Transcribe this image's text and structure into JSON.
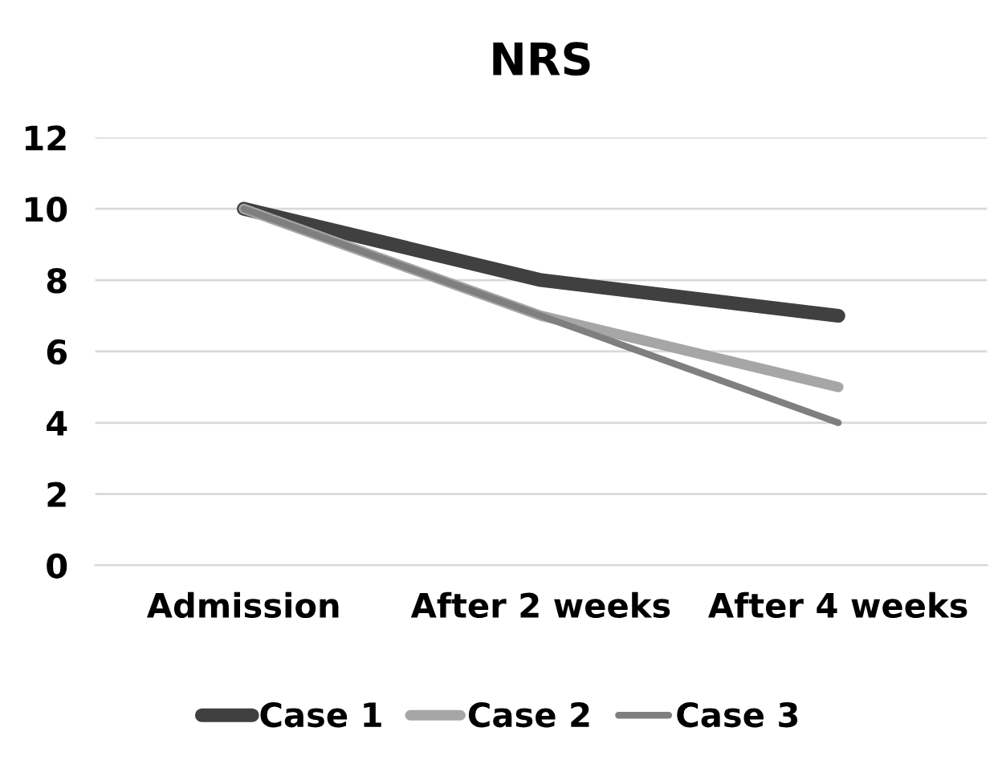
{
  "chart_data": {
    "type": "line",
    "title": "NRS",
    "categories": [
      "Admission",
      "After 2 weeks",
      "After 4 weeks"
    ],
    "series": [
      {
        "name": "Case 1",
        "color": "#404040",
        "values": [
          10,
          8,
          7
        ]
      },
      {
        "name": "Case 2",
        "color": "#a6a6a6",
        "values": [
          10,
          7,
          5
        ]
      },
      {
        "name": "Case 3",
        "color": "#7f7f7f",
        "values": [
          10,
          7,
          4
        ]
      }
    ],
    "ylim": [
      0,
      12
    ],
    "yticks": [
      0,
      2,
      4,
      6,
      8,
      10,
      12
    ],
    "grid": "y",
    "legend": "bottom",
    "marker": "none",
    "line_style": "solid"
  }
}
